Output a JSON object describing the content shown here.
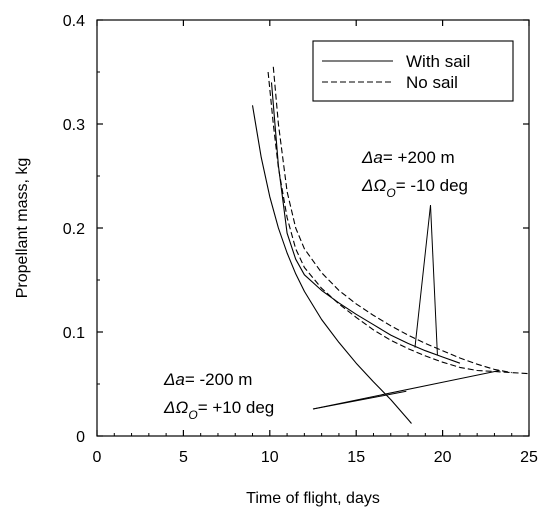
{
  "chart_data": {
    "type": "line",
    "xlabel": "Time of flight, days",
    "ylabel": "Propellant mass, kg",
    "xlim": [
      0,
      25
    ],
    "ylim": [
      0,
      0.4
    ],
    "xticks": [
      0,
      5,
      10,
      15,
      20,
      25
    ],
    "xtick_labels": [
      "0",
      "5",
      "10",
      "15",
      "20",
      "25"
    ],
    "yticks": [
      0,
      0.1,
      0.2,
      0.3,
      0.4
    ],
    "ytick_labels": [
      "0",
      "0.1",
      "0.2",
      "0.3",
      "0.4"
    ],
    "grid": false,
    "legend_position": "top-right",
    "legend": [
      {
        "label": "With sail",
        "style": "solid"
      },
      {
        "label": "No sail",
        "style": "dashed"
      }
    ],
    "series": [
      {
        "style": "solid",
        "group": "minus",
        "x": [
          9.0,
          9.5,
          10.0,
          10.5,
          11.0,
          11.5,
          12.0,
          13.0,
          14.0,
          15.0,
          16.0,
          17.0,
          18.0,
          18.2
        ],
        "y": [
          0.318,
          0.268,
          0.23,
          0.2,
          0.176,
          0.156,
          0.139,
          0.112,
          0.09,
          0.07,
          0.052,
          0.035,
          0.016,
          0.012
        ]
      },
      {
        "style": "solid",
        "group": "plus",
        "x": [
          10.1,
          10.5,
          11.0,
          11.5,
          12.0,
          13.0,
          14.0,
          15.0,
          16.0,
          17.0,
          18.0,
          19.0,
          20.0,
          21.0
        ],
        "y": [
          0.34,
          0.26,
          0.195,
          0.17,
          0.155,
          0.14,
          0.128,
          0.117,
          0.107,
          0.097,
          0.089,
          0.082,
          0.076,
          0.07
        ]
      },
      {
        "style": "dashed",
        "group": "minus",
        "x": [
          9.9,
          10.2,
          10.5,
          11.0,
          11.5,
          12.0,
          13.0,
          14.0,
          15.0,
          16.0,
          17.0,
          18.0,
          19.0,
          20.0,
          21.0,
          22.0,
          23.0,
          24.0,
          25.0
        ],
        "y": [
          0.35,
          0.3,
          0.258,
          0.21,
          0.18,
          0.162,
          0.142,
          0.127,
          0.114,
          0.102,
          0.092,
          0.084,
          0.077,
          0.071,
          0.066,
          0.063,
          0.062,
          0.061,
          0.06
        ]
      },
      {
        "style": "dashed",
        "group": "plus",
        "x": [
          10.2,
          10.5,
          11.0,
          11.5,
          12.0,
          13.0,
          14.0,
          15.0,
          16.0,
          17.0,
          18.0,
          19.0,
          20.0,
          21.0,
          22.0,
          23.0,
          24.0
        ],
        "y": [
          0.355,
          0.3,
          0.235,
          0.2,
          0.18,
          0.157,
          0.14,
          0.127,
          0.116,
          0.106,
          0.097,
          0.089,
          0.082,
          0.075,
          0.069,
          0.064,
          0.061
        ]
      }
    ],
    "annotations": [
      {
        "id": "plus",
        "line1_sym": "Δa",
        "line1_val": "= +200 m",
        "line2_sym": "ΔΩ",
        "line2_sub": "O",
        "line2_val": "= -10 deg",
        "pointer_tip": [
          19.3,
          0.222
        ],
        "pointer_targets": [
          [
            18.4,
            0.085
          ],
          [
            19.7,
            0.078
          ]
        ]
      },
      {
        "id": "minus",
        "line1_sym": "Δa",
        "line1_val": "= -200 m",
        "line2_sym": "ΔΩ",
        "line2_sub": "O",
        "line2_val": "= +10 deg",
        "pointer_tip": [
          12.5,
          0.026
        ],
        "pointer_targets": [
          [
            17.9,
            0.043
          ],
          [
            23.3,
            0.063
          ]
        ]
      }
    ]
  }
}
